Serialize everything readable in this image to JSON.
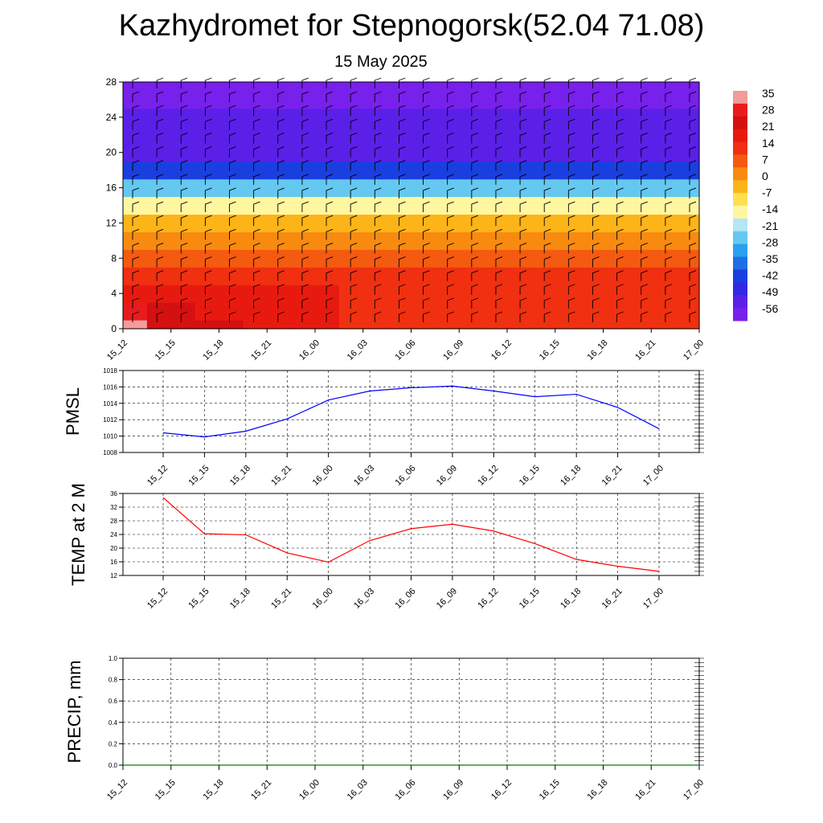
{
  "title": "Kazhydromet for Stepnogorsk(52.04 71.08)",
  "subtitle": "15 May 2025",
  "colorbar": {
    "labels": [
      "35",
      "28",
      "21",
      "14",
      "7",
      "0",
      "-7",
      "-14",
      "-21",
      "-28",
      "-35",
      "-42",
      "-49",
      "-56"
    ],
    "colors": [
      "#f29c9c",
      "#e81c1c",
      "#d41010",
      "#e81a10",
      "#f03010",
      "#f45a10",
      "#f88a10",
      "#fcb418",
      "#fce050",
      "#fff6a0",
      "#b4e6f6",
      "#64c8f0",
      "#28a0f0",
      "#1e6ee6",
      "#1a3fe0",
      "#3228e6",
      "#5a20e8",
      "#7820ec"
    ]
  },
  "chart_data": [
    {
      "type": "heatmap",
      "title": "",
      "ylabel": "",
      "ylim": [
        0,
        28
      ],
      "yticks": [
        0,
        4,
        8,
        12,
        16,
        20,
        24,
        28
      ],
      "x": [
        "15_12",
        "15_15",
        "15_18",
        "15_21",
        "16_00",
        "16_03",
        "16_06",
        "16_09",
        "16_12",
        "16_15",
        "16_18",
        "16_21",
        "17_00"
      ],
      "levels": [
        0,
        2,
        4,
        6,
        8,
        10,
        12,
        14,
        16,
        18,
        20,
        22,
        24,
        26,
        28
      ],
      "values_note_free": true,
      "values": [
        [
          34,
          26,
          23,
          20,
          17,
          15,
          13,
          12,
          12,
          12,
          12,
          12,
          12
        ],
        [
          28,
          24,
          22,
          20,
          18,
          16,
          15,
          14,
          14,
          14,
          14,
          13,
          13
        ],
        [
          22,
          20,
          19,
          18,
          17,
          16,
          15,
          15,
          15,
          15,
          14,
          14,
          14
        ],
        [
          16,
          15,
          15,
          15,
          15,
          14,
          14,
          14,
          14,
          14,
          14,
          14,
          14
        ],
        [
          10,
          10,
          10,
          10,
          10,
          10,
          10,
          10,
          10,
          10,
          10,
          10,
          10
        ],
        [
          4,
          4,
          4,
          4,
          4,
          4,
          4,
          4,
          4,
          4,
          4,
          4,
          4
        ],
        [
          -4,
          -4,
          -4,
          -4,
          -4,
          -4,
          -4,
          -4,
          -4,
          -4,
          -4,
          -4,
          -4
        ],
        [
          -14,
          -14,
          -14,
          -14,
          -14,
          -14,
          -14,
          -14,
          -14,
          -14,
          -14,
          -14,
          -14
        ],
        [
          -26,
          -26,
          -26,
          -26,
          -26,
          -26,
          -26,
          -26,
          -26,
          -26,
          -26,
          -26,
          -26
        ],
        [
          -40,
          -40,
          -40,
          -40,
          -40,
          -40,
          -40,
          -40,
          -40,
          -40,
          -40,
          -40,
          -40
        ],
        [
          -50,
          -50,
          -50,
          -50,
          -50,
          -50,
          -50,
          -50,
          -50,
          -50,
          -50,
          -50,
          -50
        ],
        [
          -52,
          -52,
          -52,
          -52,
          -52,
          -52,
          -52,
          -52,
          -52,
          -52,
          -52,
          -52,
          -52
        ],
        [
          -52,
          -52,
          -52,
          -52,
          -52,
          -52,
          -52,
          -52,
          -52,
          -52,
          -52,
          -52,
          -52
        ],
        [
          -55,
          -55,
          -55,
          -55,
          -55,
          -55,
          -55,
          -55,
          -55,
          -55,
          -55,
          -55,
          -55
        ],
        [
          -58,
          -58,
          -58,
          -58,
          -58,
          -58,
          -58,
          -58,
          -58,
          -58,
          -58,
          -58,
          -58
        ]
      ]
    },
    {
      "type": "line",
      "ylabel": "PMSL",
      "ylim": [
        1008,
        1018
      ],
      "yticks": [
        1008,
        1010,
        1012,
        1014,
        1016,
        1018
      ],
      "x": [
        "15_12",
        "15_15",
        "15_18",
        "15_21",
        "16_00",
        "16_03",
        "16_06",
        "16_09",
        "16_12",
        "16_15",
        "16_18",
        "16_21",
        "17_00"
      ],
      "series": [
        {
          "values": [
            1010.4,
            1009.9,
            1010.6,
            1012.1,
            1014.4,
            1015.5,
            1015.9,
            1016.1,
            1015.5,
            1014.8,
            1015.1,
            1013.5,
            1010.9
          ],
          "color": "#0000ff"
        }
      ],
      "grid": true
    },
    {
      "type": "line",
      "ylabel": "TEMP at 2 M",
      "ylim": [
        12,
        36
      ],
      "yticks": [
        12,
        16,
        20,
        24,
        28,
        32,
        36
      ],
      "x": [
        "15_12",
        "15_15",
        "15_18",
        "15_21",
        "16_00",
        "16_03",
        "16_06",
        "16_09",
        "16_12",
        "16_15",
        "16_18",
        "16_21",
        "17_00"
      ],
      "series": [
        {
          "values": [
            34.8,
            24.2,
            23.9,
            18.6,
            15.9,
            22.2,
            25.7,
            27.0,
            25.0,
            21.3,
            16.7,
            14.7,
            13.2
          ],
          "color": "#ff0000"
        }
      ],
      "grid": true
    },
    {
      "type": "line",
      "ylabel": "PRECIP, mm",
      "ylim": [
        0.0,
        1.0
      ],
      "yticks": [
        "0.0",
        "0.2",
        "0.4",
        "0.6",
        "0.8",
        "1.0"
      ],
      "x": [
        "15_12",
        "15_15",
        "15_18",
        "15_21",
        "16_00",
        "16_03",
        "16_06",
        "16_09",
        "16_12",
        "16_15",
        "16_18",
        "16_21",
        "17_00"
      ],
      "series": [
        {
          "values": [
            0,
            0,
            0,
            0,
            0,
            0,
            0,
            0,
            0,
            0,
            0,
            0,
            0
          ],
          "color": "#008000"
        }
      ],
      "grid": true
    }
  ]
}
